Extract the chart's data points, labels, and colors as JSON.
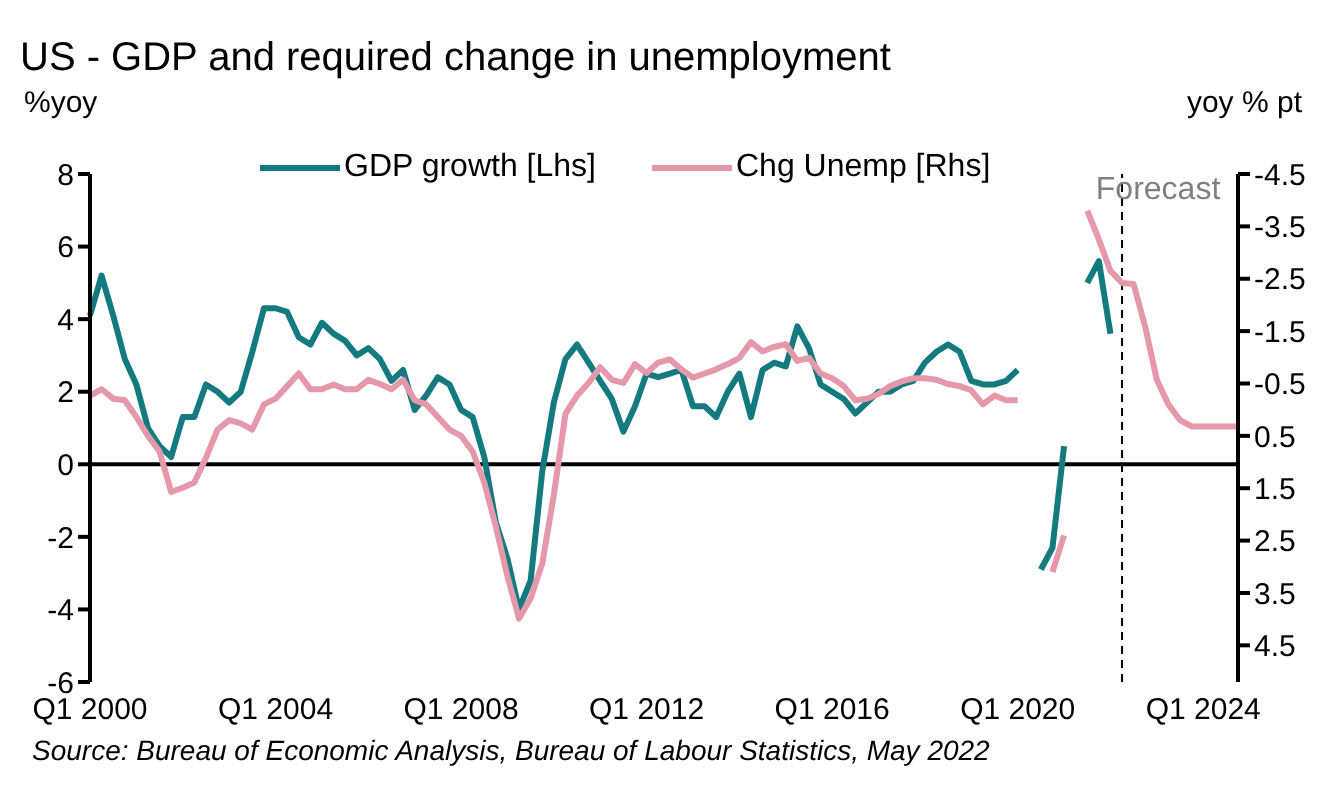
{
  "chart_data": {
    "type": "line",
    "title": "US - GDP and required change in unemployment",
    "ylabel": "%yoy",
    "y2label": "yoy % pt",
    "annotations": [
      "Source: Bureau of Economic Analysis, Bureau of Labour Statistics, May 2022",
      "Forecast"
    ],
    "categories": [
      "Q1 2000",
      null,
      null,
      null,
      null,
      null,
      null,
      null,
      null,
      null,
      null,
      null,
      null,
      null,
      null,
      null,
      "Q1 2004",
      null,
      null,
      null,
      null,
      null,
      null,
      null,
      null,
      null,
      null,
      null,
      null,
      null,
      null,
      null,
      "Q1 2008",
      null,
      null,
      null,
      null,
      null,
      null,
      null,
      null,
      null,
      null,
      null,
      null,
      null,
      null,
      null,
      "Q1 2012",
      null,
      null,
      null,
      null,
      null,
      null,
      null,
      null,
      null,
      null,
      null,
      null,
      null,
      null,
      null,
      "Q1 2016",
      null,
      null,
      null,
      null,
      null,
      null,
      null,
      null,
      null,
      null,
      null,
      null,
      null,
      null,
      null,
      "Q1 2020",
      null,
      null,
      null,
      null,
      null,
      null,
      null,
      null,
      null,
      null,
      null,
      null,
      null,
      null,
      null,
      "Q1 2024",
      null,
      null,
      null
    ],
    "series": [
      {
        "name": "GDP growth [Lhs]",
        "color": "#137a80",
        "values": [
          4.1,
          5.2,
          4.1,
          2.9,
          2.2,
          1.0,
          0.5,
          0.2,
          1.3,
          1.3,
          2.2,
          2.0,
          1.7,
          2.0,
          3.1,
          4.3,
          4.3,
          4.2,
          3.5,
          3.3,
          3.9,
          3.6,
          3.4,
          3.0,
          3.2,
          2.9,
          2.3,
          2.6,
          1.5,
          1.9,
          2.4,
          2.2,
          1.5,
          1.3,
          0.2,
          -1.6,
          -2.6,
          -4.0,
          -3.2,
          -0.2,
          1.7,
          2.9,
          3.3,
          2.8,
          2.3,
          1.8,
          0.9,
          1.6,
          2.5,
          2.4,
          2.5,
          2.6,
          1.6,
          1.6,
          1.3,
          2.0,
          2.5,
          1.3,
          2.6,
          2.8,
          2.7,
          3.8,
          3.2,
          2.2,
          2.0,
          1.8,
          1.4,
          1.7,
          2.0,
          2.0,
          2.2,
          2.3,
          2.8,
          3.1,
          3.3,
          3.1,
          2.3,
          2.2,
          2.2,
          2.3,
          2.6,
          null,
          -2.9,
          -2.3,
          0.5,
          null,
          5.0,
          5.6,
          3.6,
          null,
          null,
          null,
          null,
          null,
          null,
          null,
          null,
          null,
          null,
          null
        ]
      },
      {
        "name": "Chg Unemp [Rhs]",
        "color": "#e598aa",
        "axis": "y2",
        "values": [
          -0.27,
          -0.39,
          -0.21,
          -0.18,
          0.14,
          0.5,
          0.8,
          1.57,
          1.49,
          1.39,
          0.92,
          0.38,
          0.2,
          0.26,
          0.38,
          -0.1,
          -0.21,
          -0.45,
          -0.69,
          -0.39,
          -0.39,
          -0.48,
          -0.39,
          -0.39,
          -0.57,
          -0.49,
          -0.39,
          -0.57,
          -0.18,
          -0.1,
          0.14,
          0.38,
          0.5,
          0.8,
          1.39,
          2.23,
          3.18,
          3.99,
          3.6,
          2.94,
          1.63,
          0.08,
          -0.27,
          -0.51,
          -0.81,
          -0.57,
          -0.51,
          -0.87,
          -0.7,
          -0.9,
          -0.96,
          -0.77,
          -0.61,
          -0.69,
          -0.77,
          -0.87,
          -0.99,
          -1.29,
          -1.11,
          -1.2,
          -1.25,
          -0.93,
          -0.99,
          -0.69,
          -0.6,
          -0.45,
          -0.18,
          -0.21,
          -0.3,
          -0.45,
          -0.54,
          -0.6,
          -0.6,
          -0.57,
          -0.49,
          -0.45,
          -0.37,
          -0.1,
          -0.27,
          -0.18,
          -0.18,
          null,
          null,
          3.1,
          2.4,
          null,
          -3.8,
          -3.25,
          -2.65,
          -2.42,
          -2.4,
          -1.58,
          -0.57,
          -0.1,
          0.2,
          0.32,
          0.32,
          0.32,
          0.32,
          0.32
        ]
      }
    ],
    "ylim": [
      -6,
      8
    ],
    "yticks": [
      -6,
      -4,
      -2,
      0,
      2,
      4,
      6,
      8
    ],
    "y2lim": [
      5.2,
      -4.5
    ],
    "y2ticks": [
      -4.5,
      -3.5,
      -2.5,
      -1.5,
      -0.5,
      0.5,
      1.5,
      2.5,
      3.5,
      4.5
    ],
    "ref_lines": [
      {
        "axis": "y",
        "value": 0,
        "color": "#000000",
        "line_style": "solid"
      }
    ],
    "legend": "top",
    "marker": "none",
    "line_style": "solid"
  }
}
